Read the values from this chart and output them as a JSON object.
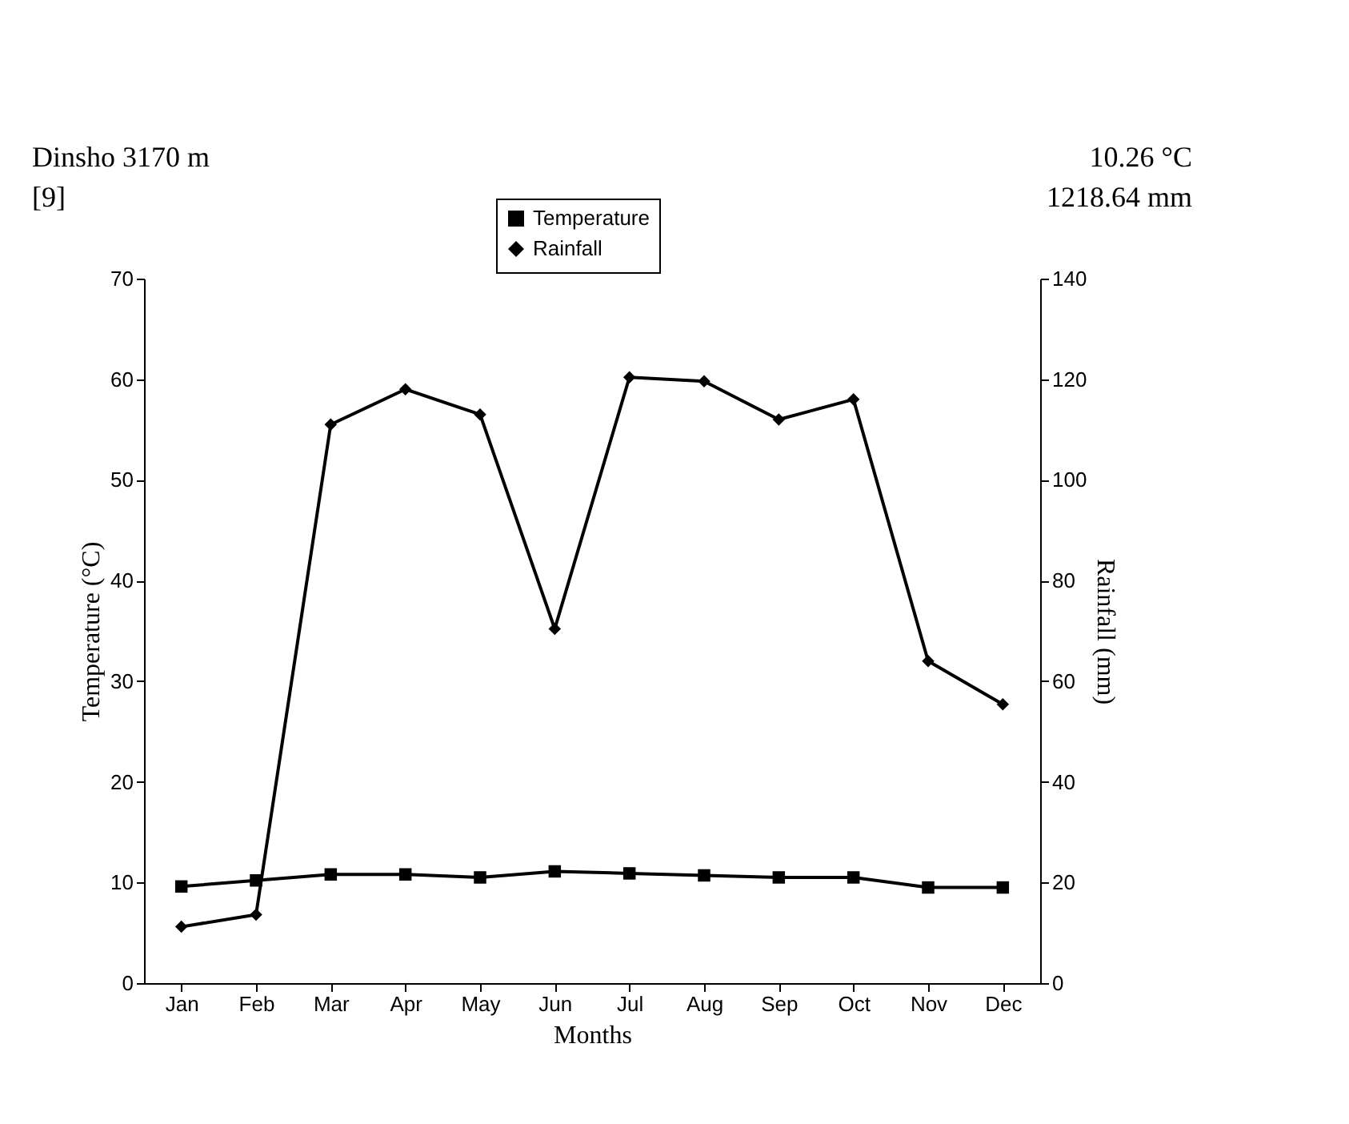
{
  "chart_data": {
    "type": "line",
    "xlabel": "Months",
    "ylabel": "Temperature (°C)",
    "y2label": "Rainfall (mm)",
    "categories": [
      "Jan",
      "Feb",
      "Mar",
      "Apr",
      "May",
      "Jun",
      "Jul",
      "Aug",
      "Sep",
      "Oct",
      "Nov",
      "Dec"
    ],
    "series": [
      {
        "name": "Temperature",
        "color": "#000000",
        "marker": "square",
        "values": [
          9.6,
          10.2,
          10.8,
          10.8,
          10.5,
          11.1,
          10.9,
          10.7,
          10.5,
          10.5,
          9.5,
          9.5
        ]
      },
      {
        "name": "Rainfall",
        "color": "#000000",
        "marker": "diamond",
        "axis": "y2",
        "values": [
          11.2,
          13.6,
          111,
          118,
          113,
          70.4,
          120.4,
          119.6,
          112,
          116,
          64,
          55.4
        ]
      }
    ],
    "ylim": [
      0,
      70
    ],
    "yticks": [
      0,
      10,
      20,
      30,
      40,
      50,
      60,
      70
    ],
    "y2lim": [
      0,
      140
    ],
    "y2ticks": [
      0,
      20,
      40,
      60,
      80,
      100,
      120,
      140
    ],
    "grid": false,
    "legend": "top",
    "line_style": "solid",
    "annotations": [
      "Dinsho 3170 m",
      "[9]",
      "10.26 °C",
      "1218.64 mm"
    ]
  }
}
